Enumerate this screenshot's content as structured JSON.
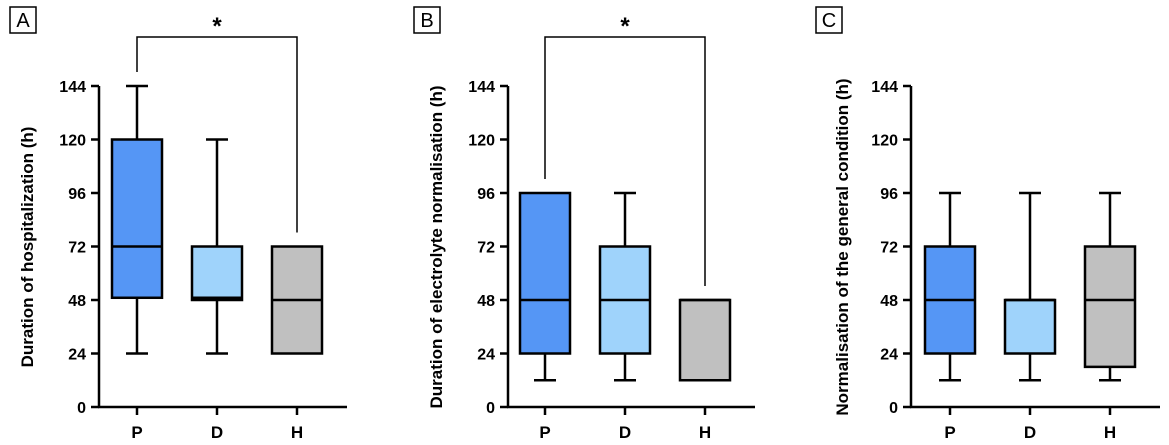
{
  "figure": {
    "panels": [
      {
        "letter": "A",
        "ylabel": "Duration of hospitalization (h)",
        "yticks": [
          "0",
          "24",
          "48",
          "72",
          "96",
          "120",
          "144"
        ],
        "significance": {
          "from": "P",
          "to": "H",
          "label": "*"
        }
      },
      {
        "letter": "B",
        "ylabel": "Duration of electrolyte normalisation (h)",
        "yticks": [
          "0",
          "24",
          "48",
          "72",
          "96",
          "120",
          "144"
        ],
        "significance": {
          "from": "P",
          "to": "H",
          "label": "*"
        }
      },
      {
        "letter": "C",
        "ylabel": "Normalisation of the general condition (h)",
        "yticks": [
          "0",
          "24",
          "48",
          "72",
          "96",
          "120",
          "144"
        ],
        "significance": null
      }
    ],
    "colors": {
      "P": "#5596f5",
      "D": "#9fd3fb",
      "H": "#c0c0c0",
      "stroke": "#000000"
    }
  },
  "chart_data": [
    {
      "type": "box",
      "title": "A",
      "xlabel": "",
      "ylabel": "Duration of hospitalization (h)",
      "ylim": [
        0,
        144
      ],
      "yticks": [
        0,
        24,
        48,
        72,
        96,
        120,
        144
      ],
      "categories": [
        "P",
        "D",
        "H"
      ],
      "boxes": [
        {
          "category": "P",
          "min": 24,
          "q1": 49,
          "median": 72,
          "q3": 120,
          "max": 144
        },
        {
          "category": "D",
          "min": 24,
          "q1": 48,
          "median": 49,
          "q3": 72,
          "max": 120
        },
        {
          "category": "H",
          "min": 24,
          "q1": 24,
          "median": 48,
          "q3": 72,
          "max": 72
        }
      ],
      "annotations": [
        {
          "type": "significance",
          "between": [
            "P",
            "H"
          ],
          "label": "*"
        }
      ]
    },
    {
      "type": "box",
      "title": "B",
      "xlabel": "",
      "ylabel": "Duration of electrolyte normalisation (h)",
      "ylim": [
        0,
        144
      ],
      "yticks": [
        0,
        24,
        48,
        72,
        96,
        120,
        144
      ],
      "categories": [
        "P",
        "D",
        "H"
      ],
      "boxes": [
        {
          "category": "P",
          "min": 12,
          "q1": 24,
          "median": 48,
          "q3": 96,
          "max": 96
        },
        {
          "category": "D",
          "min": 12,
          "q1": 24,
          "median": 48,
          "q3": 72,
          "max": 96
        },
        {
          "category": "H",
          "min": 12,
          "q1": 12,
          "median": 48,
          "q3": 48,
          "max": 48
        }
      ],
      "annotations": [
        {
          "type": "significance",
          "between": [
            "P",
            "H"
          ],
          "label": "*"
        }
      ]
    },
    {
      "type": "box",
      "title": "C",
      "xlabel": "",
      "ylabel": "Normalisation of the general condition (h)",
      "ylim": [
        0,
        144
      ],
      "yticks": [
        0,
        24,
        48,
        72,
        96,
        120,
        144
      ],
      "categories": [
        "P",
        "D",
        "H"
      ],
      "boxes": [
        {
          "category": "P",
          "min": 12,
          "q1": 24,
          "median": 48,
          "q3": 72,
          "max": 96
        },
        {
          "category": "D",
          "min": 12,
          "q1": 24,
          "median": 48,
          "q3": 48,
          "max": 96
        },
        {
          "category": "H",
          "min": 12,
          "q1": 18,
          "median": 48,
          "q3": 72,
          "max": 96
        }
      ],
      "annotations": []
    }
  ]
}
